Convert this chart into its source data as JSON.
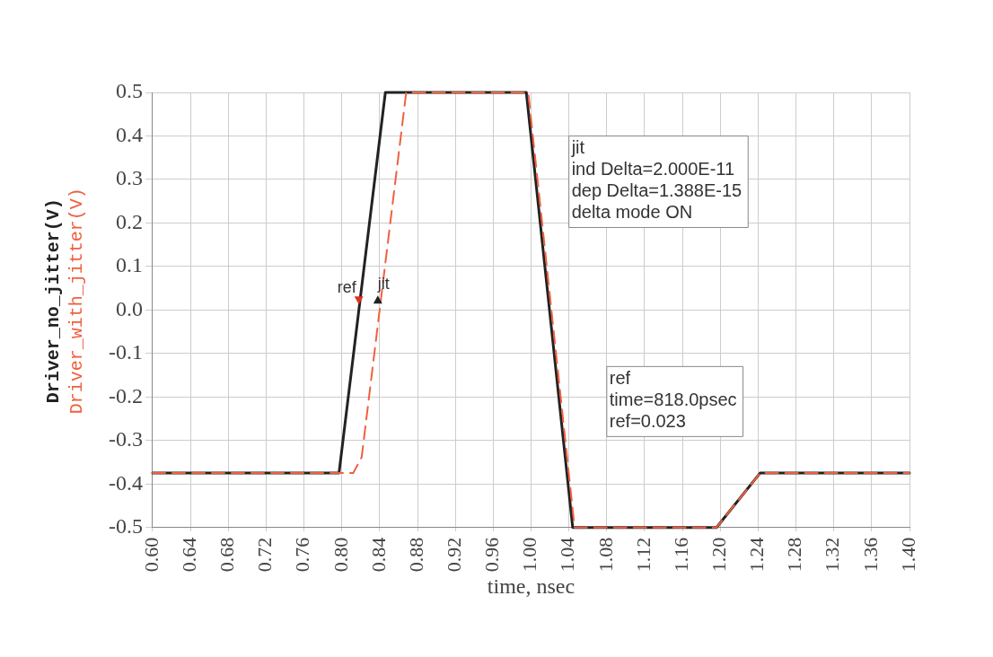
{
  "chart_data": {
    "type": "line",
    "xlabel": "time, nsec",
    "xlim": [
      0.6,
      1.4
    ],
    "xticks": [
      {
        "value": 0.6,
        "label": "0.60"
      },
      0.64,
      0.68,
      0.72,
      0.76,
      {
        "value": 0.8,
        "label": "0.80"
      },
      0.84,
      0.88,
      0.92,
      0.96,
      {
        "value": 1.0,
        "label": "1.00"
      },
      1.04,
      1.08,
      1.12,
      1.16,
      {
        "value": 1.2,
        "label": "1.20"
      },
      1.24,
      1.28,
      1.32,
      1.36,
      {
        "value": 1.4,
        "label": "1.40"
      }
    ],
    "ylim": [
      -0.5,
      0.5
    ],
    "yticks": [
      -0.5,
      -0.4,
      -0.3,
      -0.2,
      -0.1,
      {
        "value": 0,
        "label": "0.0"
      },
      0.1,
      0.2,
      0.3,
      0.4,
      0.5
    ],
    "grid": true,
    "marker": "none",
    "series": [
      {
        "name": "Driver_no_jitter(V)",
        "color": "#222222",
        "line_style": "solid",
        "x": [
          0.6,
          0.797,
          0.846,
          0.995,
          1.044,
          1.196,
          1.242,
          1.4
        ],
        "values": [
          -0.375,
          -0.375,
          0.5,
          0.5,
          -0.5,
          -0.5,
          -0.375,
          -0.375
        ]
      },
      {
        "name": "Driver_with_jitter(V)",
        "color": "#f06040",
        "line_style": "dashed",
        "x": [
          0.6,
          0.812,
          0.821,
          0.868,
          0.997,
          1.046,
          1.196,
          1.242,
          1.4
        ],
        "values": [
          -0.375,
          -0.375,
          -0.338,
          0.5,
          0.5,
          -0.5,
          -0.5,
          -0.375,
          -0.375
        ]
      }
    ],
    "annotations": [
      {
        "text": "ref",
        "x": 0.818,
        "y": 0.023
      },
      {
        "text": "jit",
        "x": 0.838,
        "y": 0.023
      },
      "jit\nind Delta=2.000E-11\ndep Delta=1.388E-15\ndelta mode ON",
      "ref\ntime=818.0psec\nref=0.023"
    ]
  }
}
